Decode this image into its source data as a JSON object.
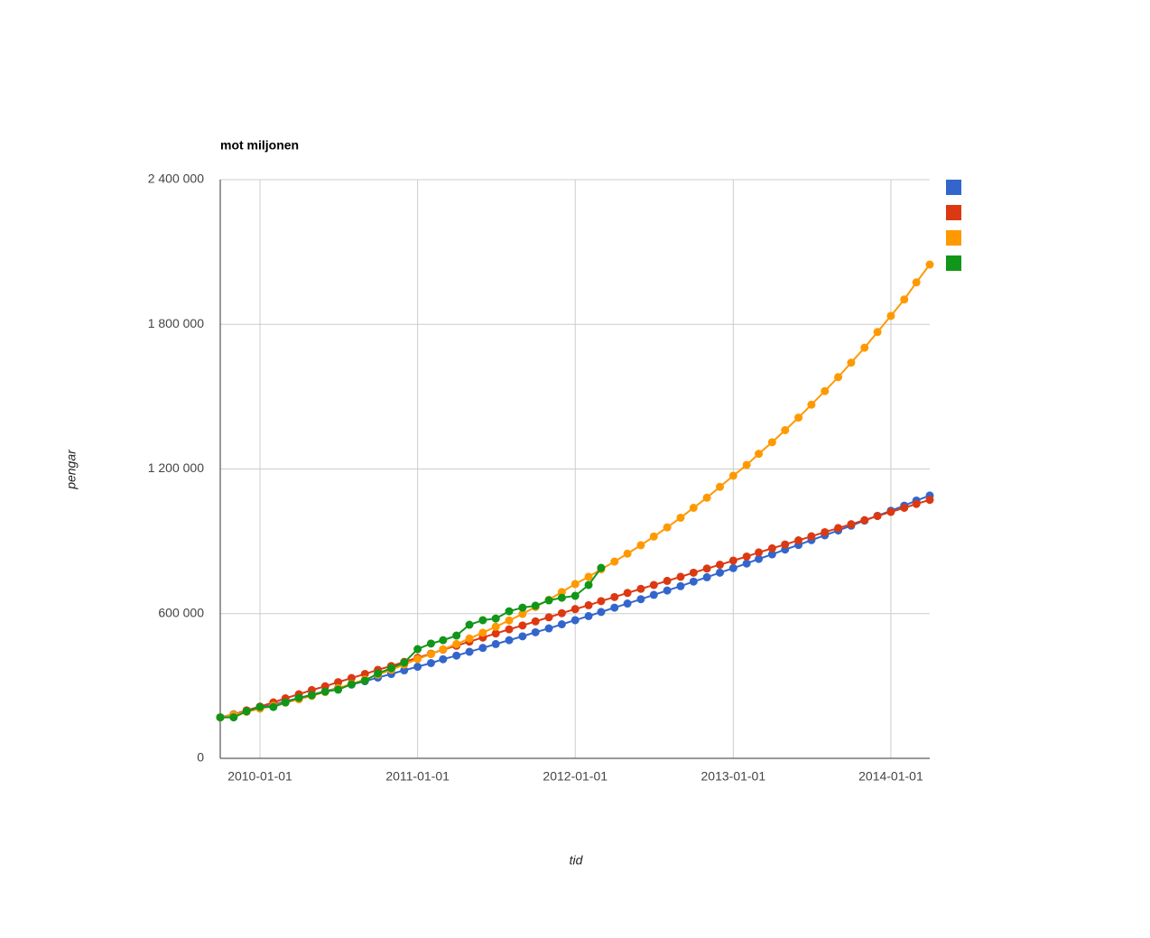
{
  "chart_data": {
    "type": "line",
    "title": "mot miljonen",
    "x_label": "tid",
    "y_label": "pengar",
    "x": [
      "2009-10-01",
      "2009-11-01",
      "2009-12-01",
      "2010-01-01",
      "2010-02-01",
      "2010-03-01",
      "2010-04-01",
      "2010-05-01",
      "2010-06-01",
      "2010-07-01",
      "2010-08-01",
      "2010-09-01",
      "2010-10-01",
      "2010-11-01",
      "2010-12-01",
      "2011-01-01",
      "2011-02-01",
      "2011-03-01",
      "2011-04-01",
      "2011-05-01",
      "2011-06-01",
      "2011-07-01",
      "2011-08-01",
      "2011-09-01",
      "2011-10-01",
      "2011-11-01",
      "2011-12-01",
      "2012-01-01",
      "2012-02-01",
      "2012-03-01",
      "2012-04-01",
      "2012-05-01",
      "2012-06-01",
      "2012-07-01",
      "2012-08-01",
      "2012-09-01",
      "2012-10-01",
      "2012-11-01",
      "2012-12-01",
      "2013-01-01",
      "2013-02-01",
      "2013-03-01",
      "2013-04-01",
      "2013-05-01",
      "2013-06-01",
      "2013-07-01",
      "2013-08-01",
      "2013-09-01",
      "2013-10-01",
      "2013-11-01",
      "2013-12-01",
      "2014-01-01",
      "2014-02-01",
      "2014-03-01",
      "2014-04-01"
    ],
    "series": [
      {
        "color": "#3366cc",
        "values": [
          170000,
          183000,
          196000,
          209000,
          223000,
          236000,
          250000,
          264000,
          278000,
          292000,
          306000,
          320000,
          335000,
          350000,
          365000,
          380000,
          395000,
          411000,
          426000,
          442000,
          458000,
          474000,
          490000,
          506000,
          523000,
          539000,
          556000,
          573000,
          590000,
          607000,
          625000,
          642000,
          660000,
          678000,
          696000,
          714000,
          733000,
          751000,
          770000,
          789000,
          808000,
          827000,
          846000,
          866000,
          885000,
          905000,
          925000,
          945000,
          965000,
          986000,
          1006000,
          1027000,
          1048000,
          1069000,
          1090000
        ]
      },
      {
        "color": "#dc3912",
        "values": [
          170000,
          182000,
          199000,
          215000,
          232000,
          249000,
          266000,
          283000,
          299000,
          316000,
          333000,
          350000,
          367000,
          383000,
          400000,
          417000,
          434000,
          451000,
          467000,
          484000,
          501000,
          518000,
          535000,
          551000,
          568000,
          585000,
          602000,
          619000,
          635000,
          652000,
          669000,
          686000,
          703000,
          719000,
          736000,
          753000,
          770000,
          787000,
          803000,
          820000,
          837000,
          854000,
          871000,
          887000,
          904000,
          921000,
          938000,
          955000,
          971000,
          988000,
          1005000,
          1022000,
          1039000,
          1055000,
          1072000
        ]
      },
      {
        "color": "#ff9900",
        "values": [
          170000,
          181000,
          193000,
          206000,
          218000,
          231000,
          245000,
          259000,
          275000,
          291000,
          309000,
          327000,
          347000,
          367000,
          389000,
          412000,
          432000,
          452000,
          474000,
          497000,
          521000,
          546000,
          572000,
          599000,
          628000,
          658000,
          690000,
          723000,
          753000,
          784000,
          816000,
          849000,
          884000,
          920000,
          958000,
          998000,
          1039000,
          1081000,
          1126000,
          1172000,
          1217000,
          1263000,
          1311000,
          1361000,
          1413000,
          1467000,
          1523000,
          1581000,
          1641000,
          1703000,
          1768000,
          1835000,
          1903000,
          1974000,
          2048000
        ]
      },
      {
        "color": "#109618",
        "values": [
          170000,
          170000,
          195000,
          213000,
          213000,
          232000,
          251000,
          262000,
          277000,
          285000,
          307000,
          322000,
          352000,
          374000,
          397000,
          453000,
          476000,
          490000,
          509000,
          554000,
          573000,
          580000,
          610000,
          625000,
          633000,
          655000,
          666000,
          674000,
          719000,
          790000,
          null,
          null,
          null,
          null,
          null,
          null,
          null,
          null,
          null,
          null,
          null,
          null,
          null,
          null,
          null,
          null,
          null,
          null,
          null,
          null,
          null,
          null,
          null,
          null,
          null
        ]
      }
    ],
    "xlim": [
      "2009-10-01",
      "2014-04-01"
    ],
    "xticks": [
      "2010-01-01",
      "2011-01-01",
      "2012-01-01",
      "2013-01-01",
      "2014-01-01"
    ],
    "ylim": [
      0,
      2400000
    ],
    "yticks": [
      0,
      {
        "value": 600000,
        "label": "600 000"
      },
      {
        "value": 1200000,
        "label": "1 200 000"
      },
      {
        "value": 1800000,
        "label": "1 800 000"
      },
      {
        "value": 2400000,
        "label": "2 400 000"
      }
    ],
    "grid": true,
    "legend": "right"
  }
}
